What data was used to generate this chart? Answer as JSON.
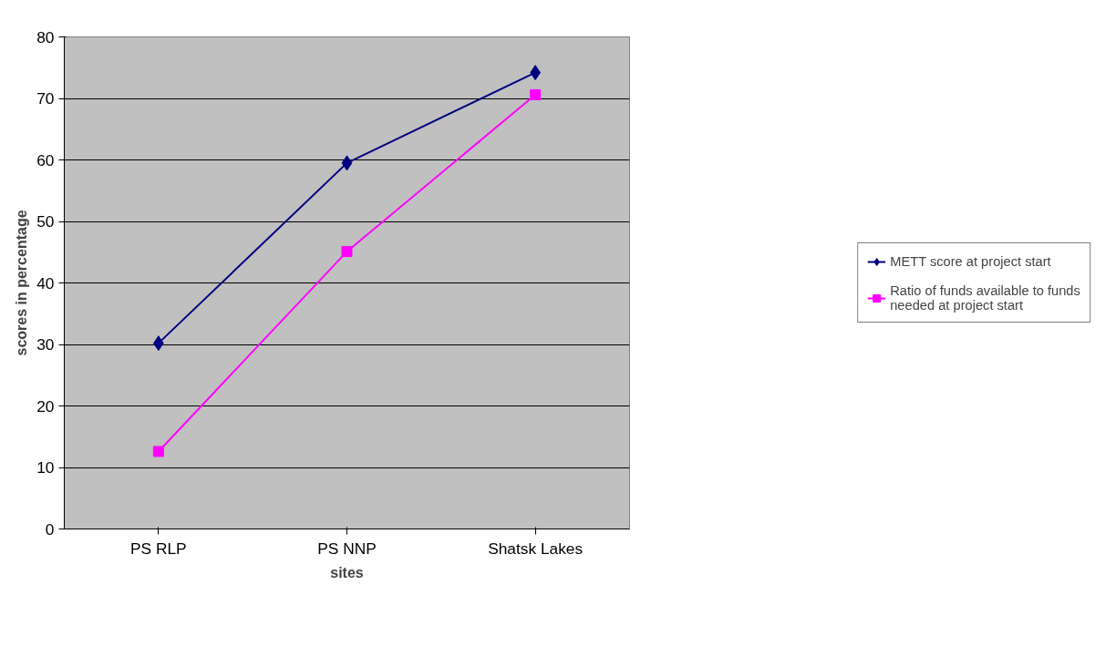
{
  "chart_data": {
    "type": "line",
    "xlabel": "sites",
    "ylabel": "scores in percentage",
    "categories": [
      "PS RLP",
      "PS NNP",
      "Shatsk Lakes"
    ],
    "series": [
      {
        "name": "METT score at project start",
        "color": "#000080",
        "values": [
          30.2,
          59.5,
          74.2
        ],
        "marker": "diamond"
      },
      {
        "name": "Ratio of funds available to funds needed at project start",
        "color": "#ff00ff",
        "values": [
          12.6,
          45.1,
          70.6
        ],
        "marker": "square"
      }
    ],
    "ylim": [
      0,
      80
    ],
    "yticks": [
      0,
      10,
      20,
      30,
      40,
      50,
      60,
      70,
      80
    ],
    "grid": "y",
    "legend": "right",
    "line_style": "solid"
  }
}
